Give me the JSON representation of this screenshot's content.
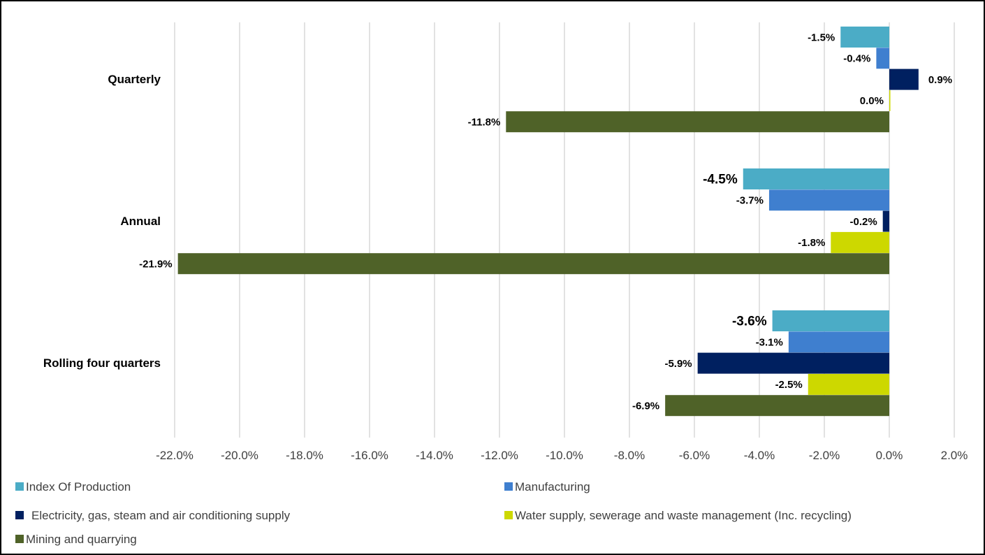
{
  "chart_data": {
    "type": "bar",
    "orientation": "horizontal",
    "categories": [
      "Quarterly",
      "Annual",
      "Rolling four quarters"
    ],
    "series": [
      {
        "name": "Index Of Production",
        "color": "#4bacc6",
        "values": [
          -1.5,
          -4.5,
          -3.6
        ],
        "labels": [
          "-1.5%",
          "-4.5%",
          "-3.6%"
        ]
      },
      {
        "name": "Manufacturing",
        "color": "#3f7fcf",
        "values": [
          -0.4,
          -3.7,
          -3.1
        ],
        "labels": [
          "-0.4%",
          "-3.7%",
          "-3.1%"
        ]
      },
      {
        "name": "Electricity, gas, steam and air conditioning supply",
        "color": "#002060",
        "values": [
          0.9,
          -0.2,
          -5.9
        ],
        "labels": [
          "0.9%",
          "-0.2%",
          "-5.9%"
        ]
      },
      {
        "name": "Water supply, sewerage and waste management (Inc. recycling)",
        "color": "#cdd800",
        "values": [
          0.0,
          -1.8,
          -2.5
        ],
        "labels": [
          "0.0%",
          "-1.8%",
          "-2.5%"
        ]
      },
      {
        "name": "Mining and quarrying",
        "color": "#4f6228",
        "values": [
          -11.8,
          -21.9,
          -6.9
        ],
        "labels": [
          "-11.8%",
          "-21.9%",
          "-6.9%"
        ]
      }
    ],
    "xlim": [
      -22,
      2
    ],
    "xticks": [
      -22,
      -20,
      -18,
      -16,
      -14,
      -12,
      -10,
      -8,
      -6,
      -4,
      -2,
      0,
      2
    ],
    "xtick_labels": [
      "-22.0%",
      "-20.0%",
      "-18.0%",
      "-16.0%",
      "-14.0%",
      "-12.0%",
      "-10.0%",
      "-8.0%",
      "-6.0%",
      "-4.0%",
      "-2.0%",
      "0.0%",
      "2.0%"
    ],
    "grid": true,
    "legend_position": "bottom",
    "title": "",
    "xlabel": "",
    "ylabel": ""
  }
}
